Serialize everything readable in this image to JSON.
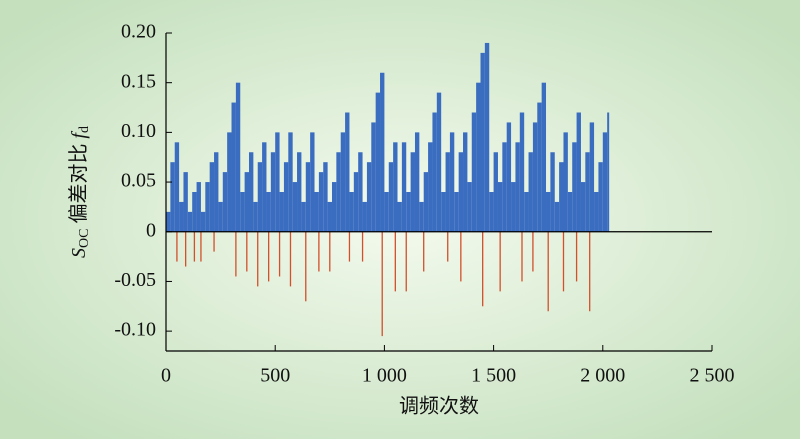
{
  "chart_data": {
    "type": "bar",
    "x_label": "调频次数",
    "y_label": [
      "S",
      "OC",
      " 偏差对比 ",
      "f",
      "d"
    ],
    "xlim": [
      0,
      2500
    ],
    "xticks": [
      0,
      500,
      {
        "value": 1000,
        "label": "1 000"
      },
      {
        "value": 1500,
        "label": "1 500"
      },
      {
        "value": 2000,
        "label": "2 000"
      },
      {
        "value": 2500,
        "label": "2 500"
      }
    ],
    "ylim": [
      -0.12,
      0.2
    ],
    "yticks": [
      {
        "value": -0.1,
        "label": "-0.10"
      },
      {
        "value": -0.05,
        "label": "-0.05"
      },
      0,
      {
        "value": 0.05,
        "label": "0.05"
      },
      {
        "value": 0.1,
        "label": "0.10"
      },
      {
        "value": 0.15,
        "label": "0.15"
      },
      {
        "value": 0.2,
        "label": "0.20"
      }
    ],
    "series": [
      {
        "color": "#3a6cc0",
        "x": [
          0,
          20,
          40,
          60,
          80,
          100,
          120,
          140,
          160,
          180,
          200,
          220,
          240,
          260,
          280,
          300,
          320,
          340,
          360,
          380,
          400,
          420,
          440,
          460,
          480,
          500,
          520,
          540,
          560,
          580,
          600,
          620,
          640,
          660,
          680,
          700,
          720,
          740,
          760,
          780,
          800,
          820,
          840,
          860,
          880,
          900,
          920,
          940,
          960,
          980,
          1000,
          1020,
          1040,
          1060,
          1080,
          1100,
          1120,
          1140,
          1160,
          1180,
          1200,
          1220,
          1240,
          1260,
          1280,
          1300,
          1320,
          1340,
          1360,
          1380,
          1400,
          1420,
          1440,
          1460,
          1480,
          1500,
          1520,
          1540,
          1560,
          1580,
          1600,
          1620,
          1640,
          1660,
          1680,
          1700,
          1720,
          1740,
          1760,
          1780,
          1800,
          1820,
          1840,
          1860,
          1880,
          1900,
          1920,
          1940,
          1960,
          1980,
          2000,
          2020
        ],
        "values": [
          0.02,
          0.07,
          0.09,
          0.03,
          0.06,
          0.02,
          0.04,
          0.05,
          0.02,
          0.05,
          0.07,
          0.08,
          0.03,
          0.06,
          0.1,
          0.13,
          0.15,
          0.04,
          0.06,
          0.08,
          0.03,
          0.07,
          0.09,
          0.04,
          0.08,
          0.1,
          0.04,
          0.07,
          0.1,
          0.05,
          0.08,
          0.03,
          0.07,
          0.1,
          0.04,
          0.06,
          0.07,
          0.03,
          0.05,
          0.08,
          0.1,
          0.12,
          0.04,
          0.06,
          0.08,
          0.03,
          0.07,
          0.11,
          0.14,
          0.16,
          0.04,
          0.07,
          0.09,
          0.03,
          0.09,
          0.04,
          0.08,
          0.1,
          0.03,
          0.06,
          0.09,
          0.12,
          0.14,
          0.04,
          0.08,
          0.1,
          0.04,
          0.08,
          0.1,
          0.05,
          0.12,
          0.15,
          0.18,
          0.19,
          0.04,
          0.08,
          0.05,
          0.09,
          0.11,
          0.05,
          0.09,
          0.12,
          0.04,
          0.08,
          0.11,
          0.13,
          0.15,
          0.04,
          0.08,
          0.03,
          0.07,
          0.1,
          0.04,
          0.09,
          0.12,
          0.05,
          0.08,
          0.11,
          0.04,
          0.07,
          0.1,
          0.12
        ]
      },
      {
        "color": "#d2502a",
        "x": [
          50,
          90,
          130,
          160,
          220,
          320,
          370,
          420,
          470,
          520,
          570,
          640,
          700,
          750,
          840,
          900,
          990,
          1050,
          1100,
          1180,
          1290,
          1350,
          1450,
          1530,
          1630,
          1680,
          1750,
          1820,
          1880,
          1940
        ],
        "values": [
          -0.03,
          -0.035,
          -0.03,
          -0.03,
          -0.02,
          -0.045,
          -0.04,
          -0.055,
          -0.05,
          -0.045,
          -0.055,
          -0.07,
          -0.04,
          -0.04,
          -0.03,
          -0.03,
          -0.105,
          -0.06,
          -0.06,
          -0.04,
          -0.03,
          -0.05,
          -0.075,
          -0.06,
          -0.05,
          -0.04,
          -0.08,
          -0.06,
          -0.05,
          -0.08
        ]
      }
    ]
  }
}
